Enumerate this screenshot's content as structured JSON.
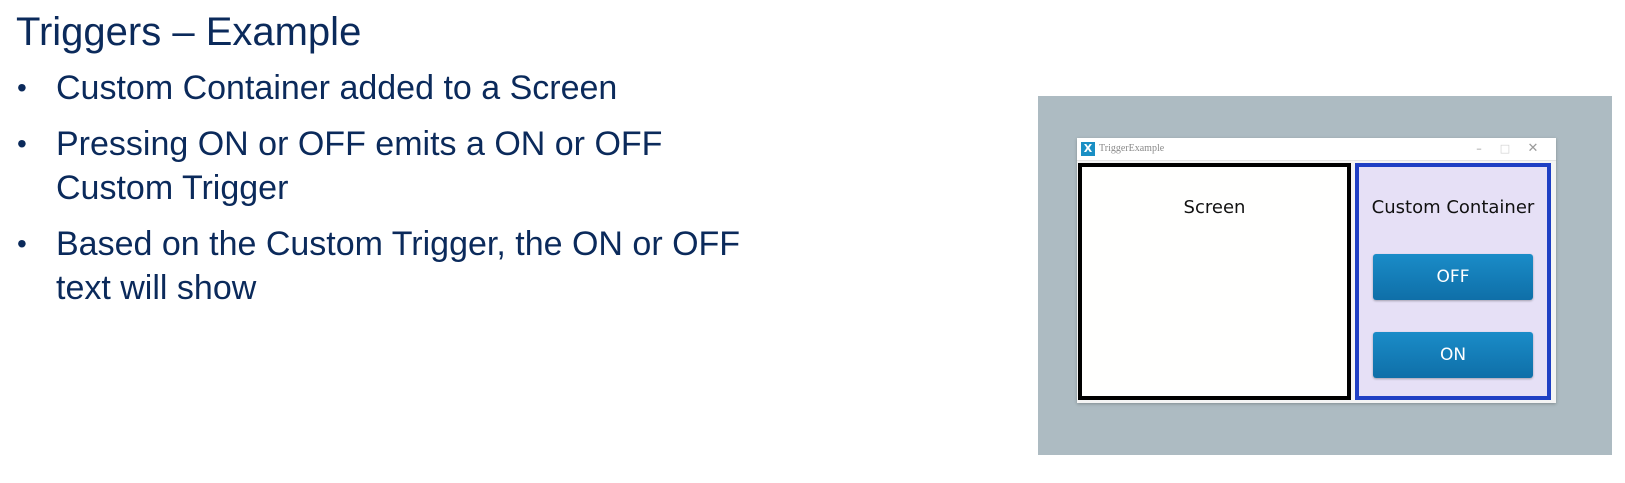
{
  "slide": {
    "title": "Triggers – Example",
    "bullets": [
      {
        "lines": [
          "Custom Container added to a Screen"
        ]
      },
      {
        "lines": [
          "Pressing ON or OFF emits a ON or OFF",
          "Custom Trigger"
        ]
      },
      {
        "lines": [
          "Based on the Custom Trigger, the ON or OFF",
          "text will show"
        ]
      }
    ],
    "bullet_symbol": "•"
  },
  "window": {
    "title": "TriggerExample",
    "icon_glyph": "X",
    "icon": "app-x-icon",
    "controls": {
      "minimize": "–",
      "maximize": "□",
      "close": "✕"
    }
  },
  "screen": {
    "label": "Screen"
  },
  "custom_container": {
    "label": "Custom Container",
    "off_button": "OFF",
    "on_button": "ON"
  },
  "colors": {
    "title_text": "#0b2a5b",
    "panel_background": "#adbbc2",
    "container_border": "#1f3fc4",
    "container_fill": "#e6e0f6",
    "button_fill": "#1a8cc8"
  }
}
